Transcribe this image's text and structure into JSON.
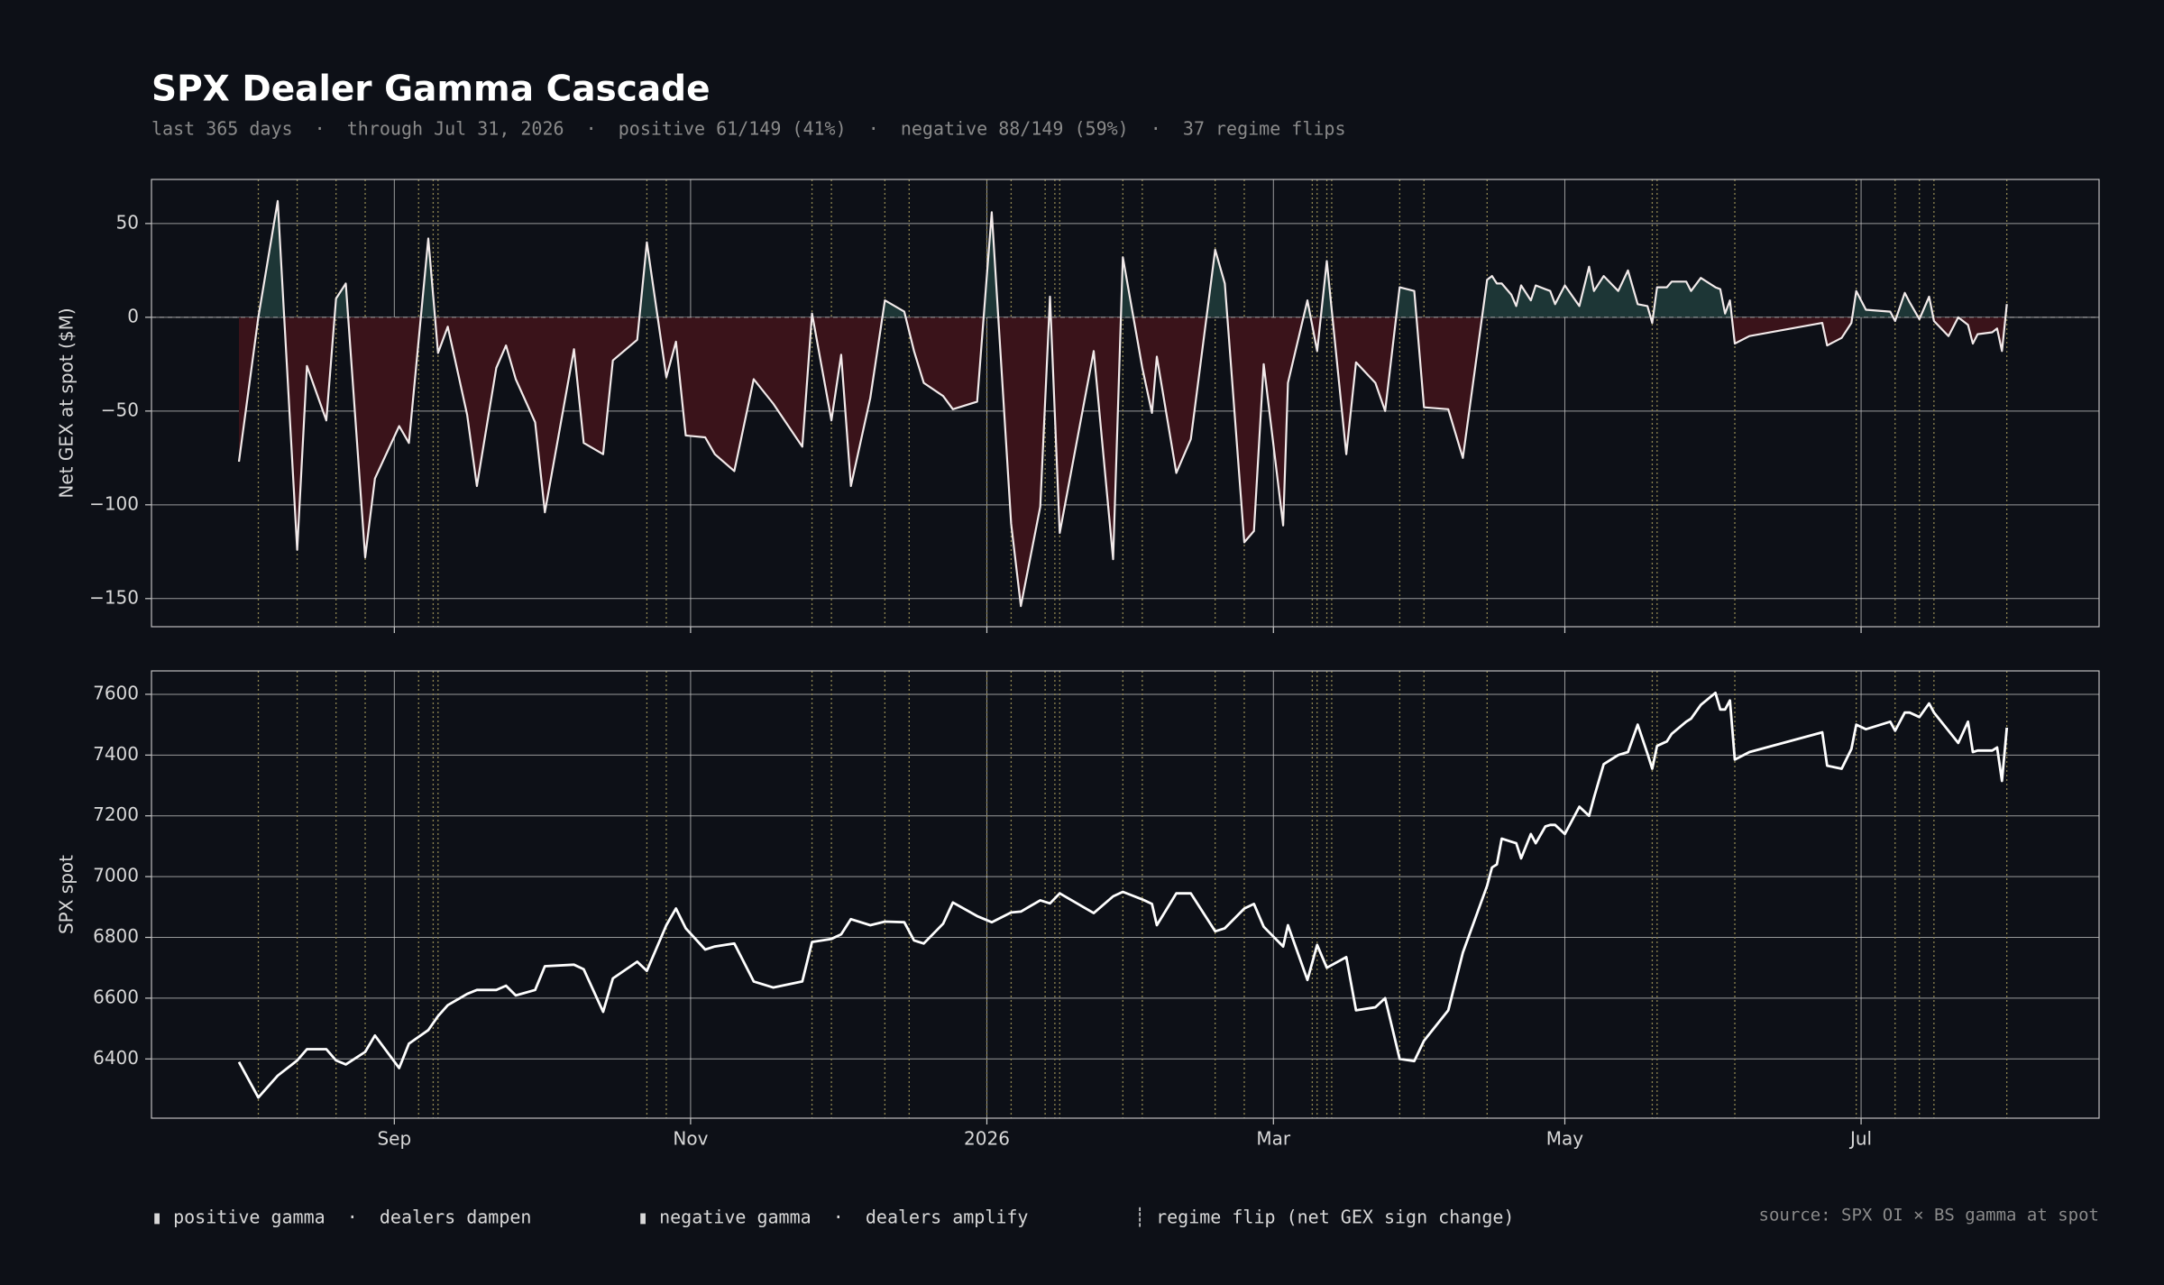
{
  "header": {
    "title": "SPX Dealer Gamma Cascade",
    "subtitle": "last 365 days  ·  through Jul 31, 2026  ·  positive 61/149 (41%)  ·  negative 88/149 (59%)  ·  37 regime flips"
  },
  "chart_data": [
    {
      "type": "area",
      "ylabel": "Net GEX at spot ($M)",
      "color": "#f2eaea",
      "fill_positive": "#1d3636",
      "fill_negative": "#3a131a",
      "flip_color": "#8c8350",
      "xlim": [
        -18,
        383
      ],
      "xticks": [
        32,
        93,
        154,
        213,
        273,
        334
      ],
      "ylim": [
        -165,
        73.5
      ],
      "yticks": [
        {
          "value": -150,
          "label": "−150"
        },
        {
          "value": -100,
          "label": "−100"
        },
        {
          "value": -50,
          "label": "−50"
        },
        0,
        50
      ],
      "grid": true,
      "flips": [
        4,
        12,
        20,
        26,
        37,
        40,
        41,
        84,
        88,
        118,
        122,
        133,
        138,
        154,
        159,
        166,
        168,
        169,
        182,
        186,
        201,
        207,
        221,
        222,
        224,
        225,
        239,
        244,
        257,
        291,
        292,
        308,
        333,
        341,
        346,
        349,
        364
      ],
      "x": [
        0,
        4,
        8,
        12,
        14,
        18,
        20,
        22,
        26,
        28,
        33,
        35,
        39,
        41,
        43,
        47,
        49,
        53,
        55,
        57,
        61,
        63,
        69,
        71,
        75,
        77,
        82,
        84,
        88,
        90,
        92,
        96,
        98,
        102,
        106,
        110,
        116,
        118,
        122,
        124,
        126,
        130,
        133,
        137,
        139,
        141,
        145,
        147,
        152,
        155,
        159,
        161,
        165,
        167,
        169,
        176,
        180,
        182,
        186,
        188,
        189,
        193,
        196,
        201,
        203,
        207,
        209,
        211,
        215,
        216,
        220,
        222,
        224,
        228,
        230,
        234,
        236,
        239,
        242,
        244,
        249,
        252,
        257,
        258,
        259,
        260,
        262,
        263,
        264,
        266,
        267,
        269,
        270,
        271,
        273,
        276,
        278,
        279,
        281,
        284,
        286,
        288,
        290,
        291,
        292,
        294,
        295,
        298,
        299,
        301,
        304,
        305,
        306,
        307,
        308,
        311,
        326,
        327,
        330,
        332,
        333,
        335,
        340,
        341,
        343,
        344,
        346,
        348,
        349,
        352,
        354,
        356,
        357,
        358,
        361,
        362,
        363,
        364
      ],
      "values": [
        -77,
        0,
        62,
        -124,
        -26,
        -55,
        10,
        18,
        -128,
        -86,
        -58,
        -67,
        42,
        -19,
        -5,
        -52,
        -90,
        -27,
        -15,
        -33,
        -56,
        -104,
        -17,
        -67,
        -73,
        -23,
        -12,
        40,
        -32,
        -13,
        -63,
        -64,
        -73,
        -82,
        -33,
        -46,
        -69,
        2,
        -55,
        -20,
        -90,
        -43,
        9,
        3,
        -18,
        -35,
        -42,
        -49,
        -45,
        56,
        -110,
        -154,
        -101,
        11,
        -115,
        -18,
        -129,
        32,
        -27,
        -51,
        -21,
        -83,
        -65,
        36,
        18,
        -120,
        -114,
        -25,
        -111,
        -35,
        9,
        -18,
        30,
        -73,
        -24,
        -35,
        -50,
        16,
        14,
        -48,
        -49,
        -75,
        20,
        22,
        18,
        18,
        12,
        6,
        17,
        9,
        17,
        15,
        14,
        7,
        17,
        6,
        27,
        14,
        22,
        14,
        25,
        7,
        6,
        -3,
        16,
        16,
        19,
        19,
        14,
        21,
        16,
        15,
        2,
        9,
        -14,
        -10,
        -3,
        -15,
        -11,
        -3,
        14,
        4,
        3,
        -2,
        13,
        8,
        -1,
        11,
        -2,
        -10,
        0,
        -4,
        -14,
        -9,
        -8,
        -6,
        -18,
        7
      ]
    },
    {
      "type": "line",
      "ylabel": "SPX spot",
      "color": "#ffffff",
      "xlim": [
        -18,
        383
      ],
      "xticks": [
        {
          "value": 32,
          "label": "Sep"
        },
        {
          "value": 93,
          "label": "Nov"
        },
        {
          "value": 154,
          "label": "2026"
        },
        {
          "value": 213,
          "label": "Mar"
        },
        {
          "value": 273,
          "label": "May"
        },
        {
          "value": 334,
          "label": "Jul"
        }
      ],
      "ylim": [
        6205,
        7677
      ],
      "yticks": [
        6400,
        6600,
        6800,
        7000,
        7200,
        7400,
        7600
      ],
      "grid": true,
      "x": [
        0,
        4,
        8,
        12,
        14,
        18,
        20,
        22,
        26,
        28,
        33,
        35,
        39,
        41,
        43,
        47,
        49,
        53,
        55,
        57,
        61,
        63,
        69,
        71,
        75,
        77,
        82,
        84,
        88,
        90,
        92,
        96,
        98,
        102,
        106,
        110,
        116,
        118,
        122,
        124,
        126,
        130,
        133,
        137,
        139,
        141,
        145,
        147,
        152,
        155,
        159,
        161,
        165,
        167,
        169,
        176,
        180,
        182,
        186,
        188,
        189,
        193,
        196,
        201,
        203,
        207,
        209,
        211,
        215,
        216,
        220,
        222,
        224,
        228,
        230,
        234,
        236,
        239,
        242,
        244,
        249,
        252,
        257,
        258,
        259,
        260,
        262,
        263,
        264,
        266,
        267,
        269,
        270,
        271,
        273,
        276,
        278,
        279,
        281,
        284,
        286,
        288,
        290,
        291,
        292,
        294,
        295,
        298,
        299,
        301,
        304,
        305,
        306,
        307,
        308,
        311,
        326,
        327,
        330,
        332,
        333,
        335,
        340,
        341,
        343,
        344,
        346,
        348,
        349,
        352,
        354,
        356,
        357,
        358,
        361,
        362,
        363,
        364
      ],
      "values": [
        6390,
        6273,
        6345,
        6395,
        6432,
        6432,
        6395,
        6382,
        6423,
        6477,
        6370,
        6450,
        6495,
        6541,
        6577,
        6614,
        6627,
        6627,
        6641,
        6609,
        6627,
        6705,
        6710,
        6695,
        6555,
        6665,
        6720,
        6690,
        6840,
        6895,
        6830,
        6760,
        6770,
        6780,
        6655,
        6635,
        6655,
        6785,
        6795,
        6810,
        6860,
        6840,
        6852,
        6850,
        6790,
        6780,
        6845,
        6915,
        6870,
        6850,
        6882,
        6885,
        6922,
        6912,
        6945,
        6880,
        6935,
        6950,
        6925,
        6910,
        6840,
        6945,
        6945,
        6820,
        6830,
        6895,
        6910,
        6835,
        6770,
        6840,
        6660,
        6775,
        6700,
        6735,
        6560,
        6570,
        6600,
        6400,
        6393,
        6460,
        6560,
        6750,
        6970,
        7030,
        7040,
        7125,
        7115,
        7110,
        7060,
        7140,
        7110,
        7165,
        7170,
        7170,
        7140,
        7230,
        7200,
        7260,
        7370,
        7400,
        7410,
        7500,
        7405,
        7355,
        7430,
        7445,
        7470,
        7510,
        7520,
        7565,
        7605,
        7550,
        7550,
        7580,
        7385,
        7410,
        7475,
        7365,
        7355,
        7420,
        7500,
        7485,
        7510,
        7480,
        7540,
        7540,
        7525,
        7570,
        7540,
        7480,
        7440,
        7510,
        7410,
        7415,
        7415,
        7425,
        7315,
        7490
      ]
    }
  ],
  "footer": {
    "legend": [
      "▮ positive gamma  ·  dealers dampen",
      "▮ negative gamma  ·  dealers amplify",
      "┊ regime flip (net GEX sign change)"
    ],
    "source": "source: SPX OI × BS gamma at spot"
  }
}
